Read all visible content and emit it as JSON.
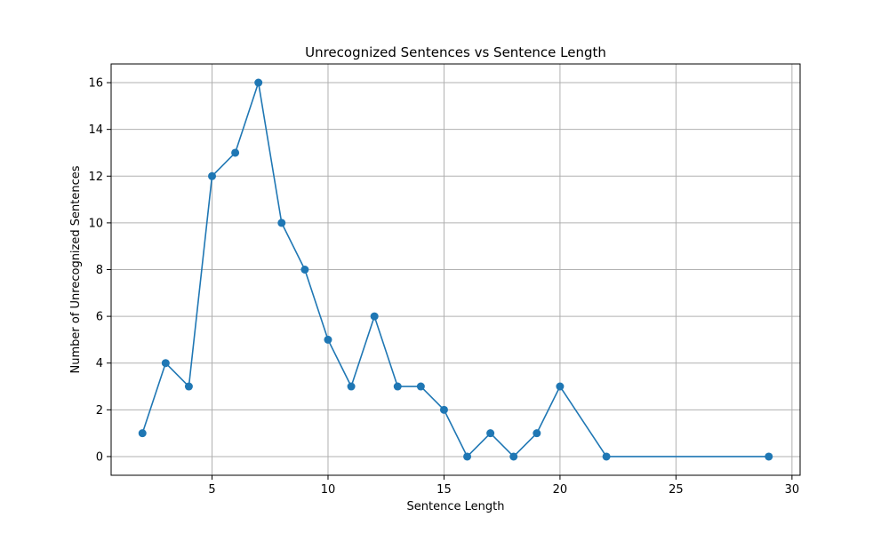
{
  "chart_data": {
    "type": "line",
    "title": "Unrecognized Sentences vs Sentence Length",
    "xlabel": "Sentence Length",
    "ylabel": "Number of Unrecognized Sentences",
    "x": [
      2,
      3,
      4,
      5,
      6,
      7,
      8,
      9,
      10,
      11,
      12,
      13,
      14,
      15,
      16,
      17,
      18,
      19,
      20,
      22,
      29
    ],
    "series": [
      {
        "values": [
          1,
          4,
          3,
          12,
          13,
          16,
          10,
          8,
          5,
          3,
          6,
          3,
          3,
          2,
          0,
          1,
          0,
          1,
          3,
          0,
          0
        ]
      }
    ],
    "xlim": [
      0.65,
      30.35
    ],
    "ylim": [
      -0.8,
      16.8
    ],
    "xticks": [
      5,
      10,
      15,
      20,
      25,
      30
    ],
    "yticks": [
      0,
      2,
      4,
      6,
      8,
      10,
      12,
      14,
      16
    ],
    "grid": true,
    "marker": "circle",
    "color": "#1f77b4"
  }
}
